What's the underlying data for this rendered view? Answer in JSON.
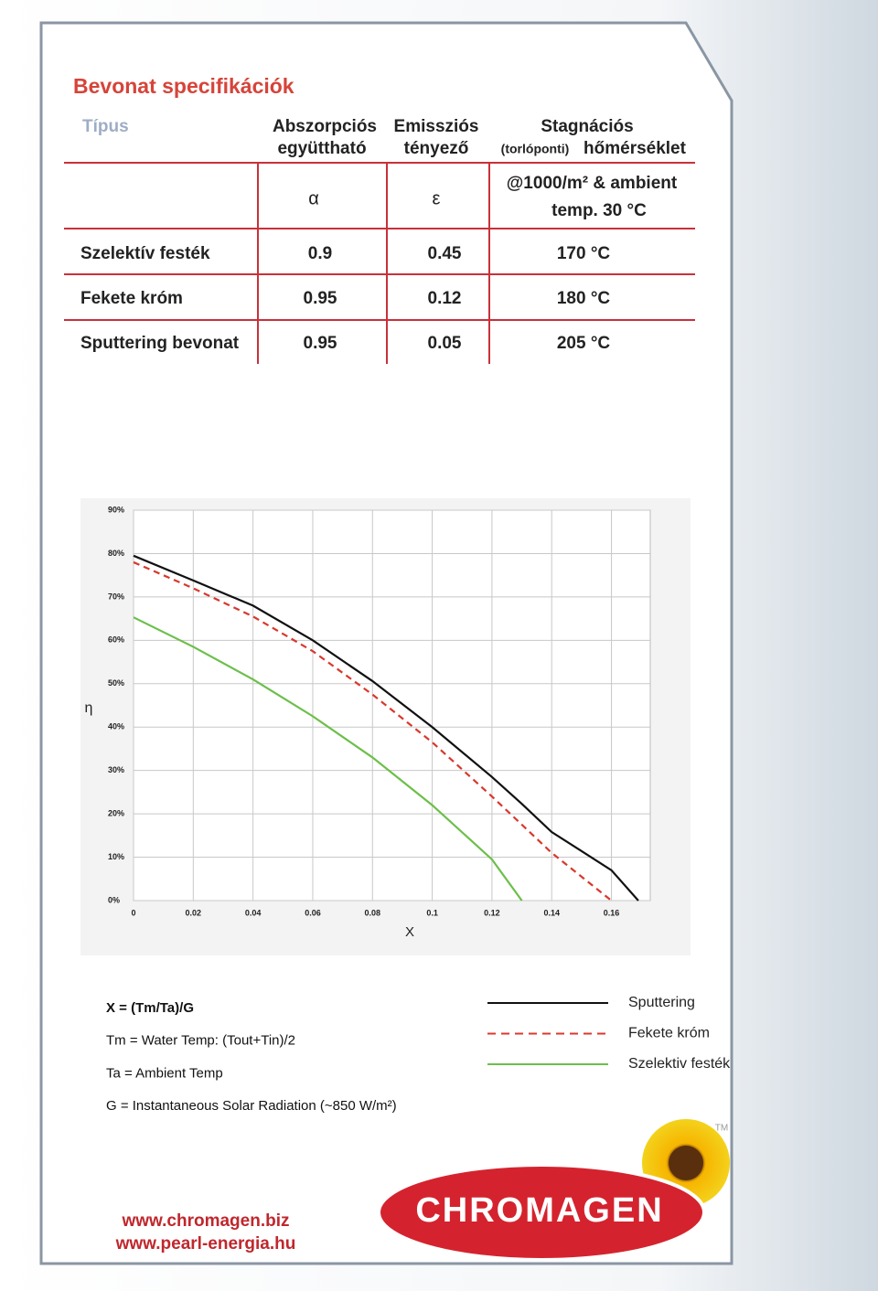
{
  "header": {
    "title": "Bevonat specifikációk"
  },
  "table": {
    "header": [
      [
        "Típus"
      ],
      [
        "Abszorpciós",
        "együttható"
      ],
      [
        "Emissziós",
        "tényező"
      ],
      [
        "Stagnációs",
        "(torlóponti)",
        "hőmérséklet"
      ]
    ],
    "symbols": [
      "α",
      "ε",
      "@1000/m² & ambient",
      "temp. 30 °C"
    ],
    "rows": [
      [
        "Szelektív festék",
        "0.9",
        "0.45",
        "170 °C"
      ],
      [
        "Fekete króm",
        "0.95",
        "0.12",
        "180 °C"
      ],
      [
        "Sputtering bevonat",
        "0.95",
        "0.05",
        "205 °C"
      ]
    ]
  },
  "chart_data": {
    "type": "line",
    "xlabel": "X",
    "ylabel": "η",
    "x": [
      0,
      0.02,
      0.04,
      0.06,
      0.08,
      0.1,
      0.12,
      0.13,
      0.14,
      0.16,
      0.169
    ],
    "series": [
      {
        "name": "Sputtering",
        "color": "#111111",
        "dashed": false,
        "values": [
          79.5,
          73.8,
          68,
          60,
          50.6,
          40,
          28.5,
          22.3,
          15.8,
          7,
          0
        ]
      },
      {
        "name": "Fekete króm",
        "color": "#d9382c",
        "dashed": true,
        "values": [
          78,
          72,
          65.5,
          57.5,
          47.5,
          36.5,
          24,
          17.5,
          11,
          0,
          null
        ]
      },
      {
        "name": "Szelektiv festék",
        "color": "#6cbf4a",
        "dashed": false,
        "values": [
          65.3,
          58.5,
          51,
          42.5,
          33,
          22,
          9.5,
          0,
          null,
          null,
          null
        ]
      }
    ],
    "xlim": [
      0,
      0.173
    ],
    "ylim": [
      0,
      90
    ],
    "xticks": [
      0,
      0.02,
      0.04,
      0.06,
      0.08,
      0.1,
      0.12,
      0.14,
      0.16
    ],
    "yticks": [
      {
        "value": 0,
        "label": "0%"
      },
      {
        "value": 10,
        "label": "10%"
      },
      {
        "value": 20,
        "label": "20%"
      },
      {
        "value": 30,
        "label": "30%"
      },
      {
        "value": 40,
        "label": "40%"
      },
      {
        "value": 50,
        "label": "50%"
      },
      {
        "value": 60,
        "label": "60%"
      },
      {
        "value": 70,
        "label": "70%"
      },
      {
        "value": 80,
        "label": "80%"
      },
      {
        "value": 90,
        "label": "90%"
      }
    ],
    "grid": true,
    "legend": "bottom-right"
  },
  "notes": [
    "X = (Tm/Ta)/G",
    "Tm = Water Temp: (Tout+Tin)/2",
    "Ta = Ambient Temp",
    "G = Instantaneous Solar Radiation (~850 W/m²)"
  ],
  "footer": {
    "links": [
      "www.chromagen.biz",
      "www.pearl-energia.hu"
    ],
    "logo": "CHROMAGEN",
    "tm": "TM"
  }
}
